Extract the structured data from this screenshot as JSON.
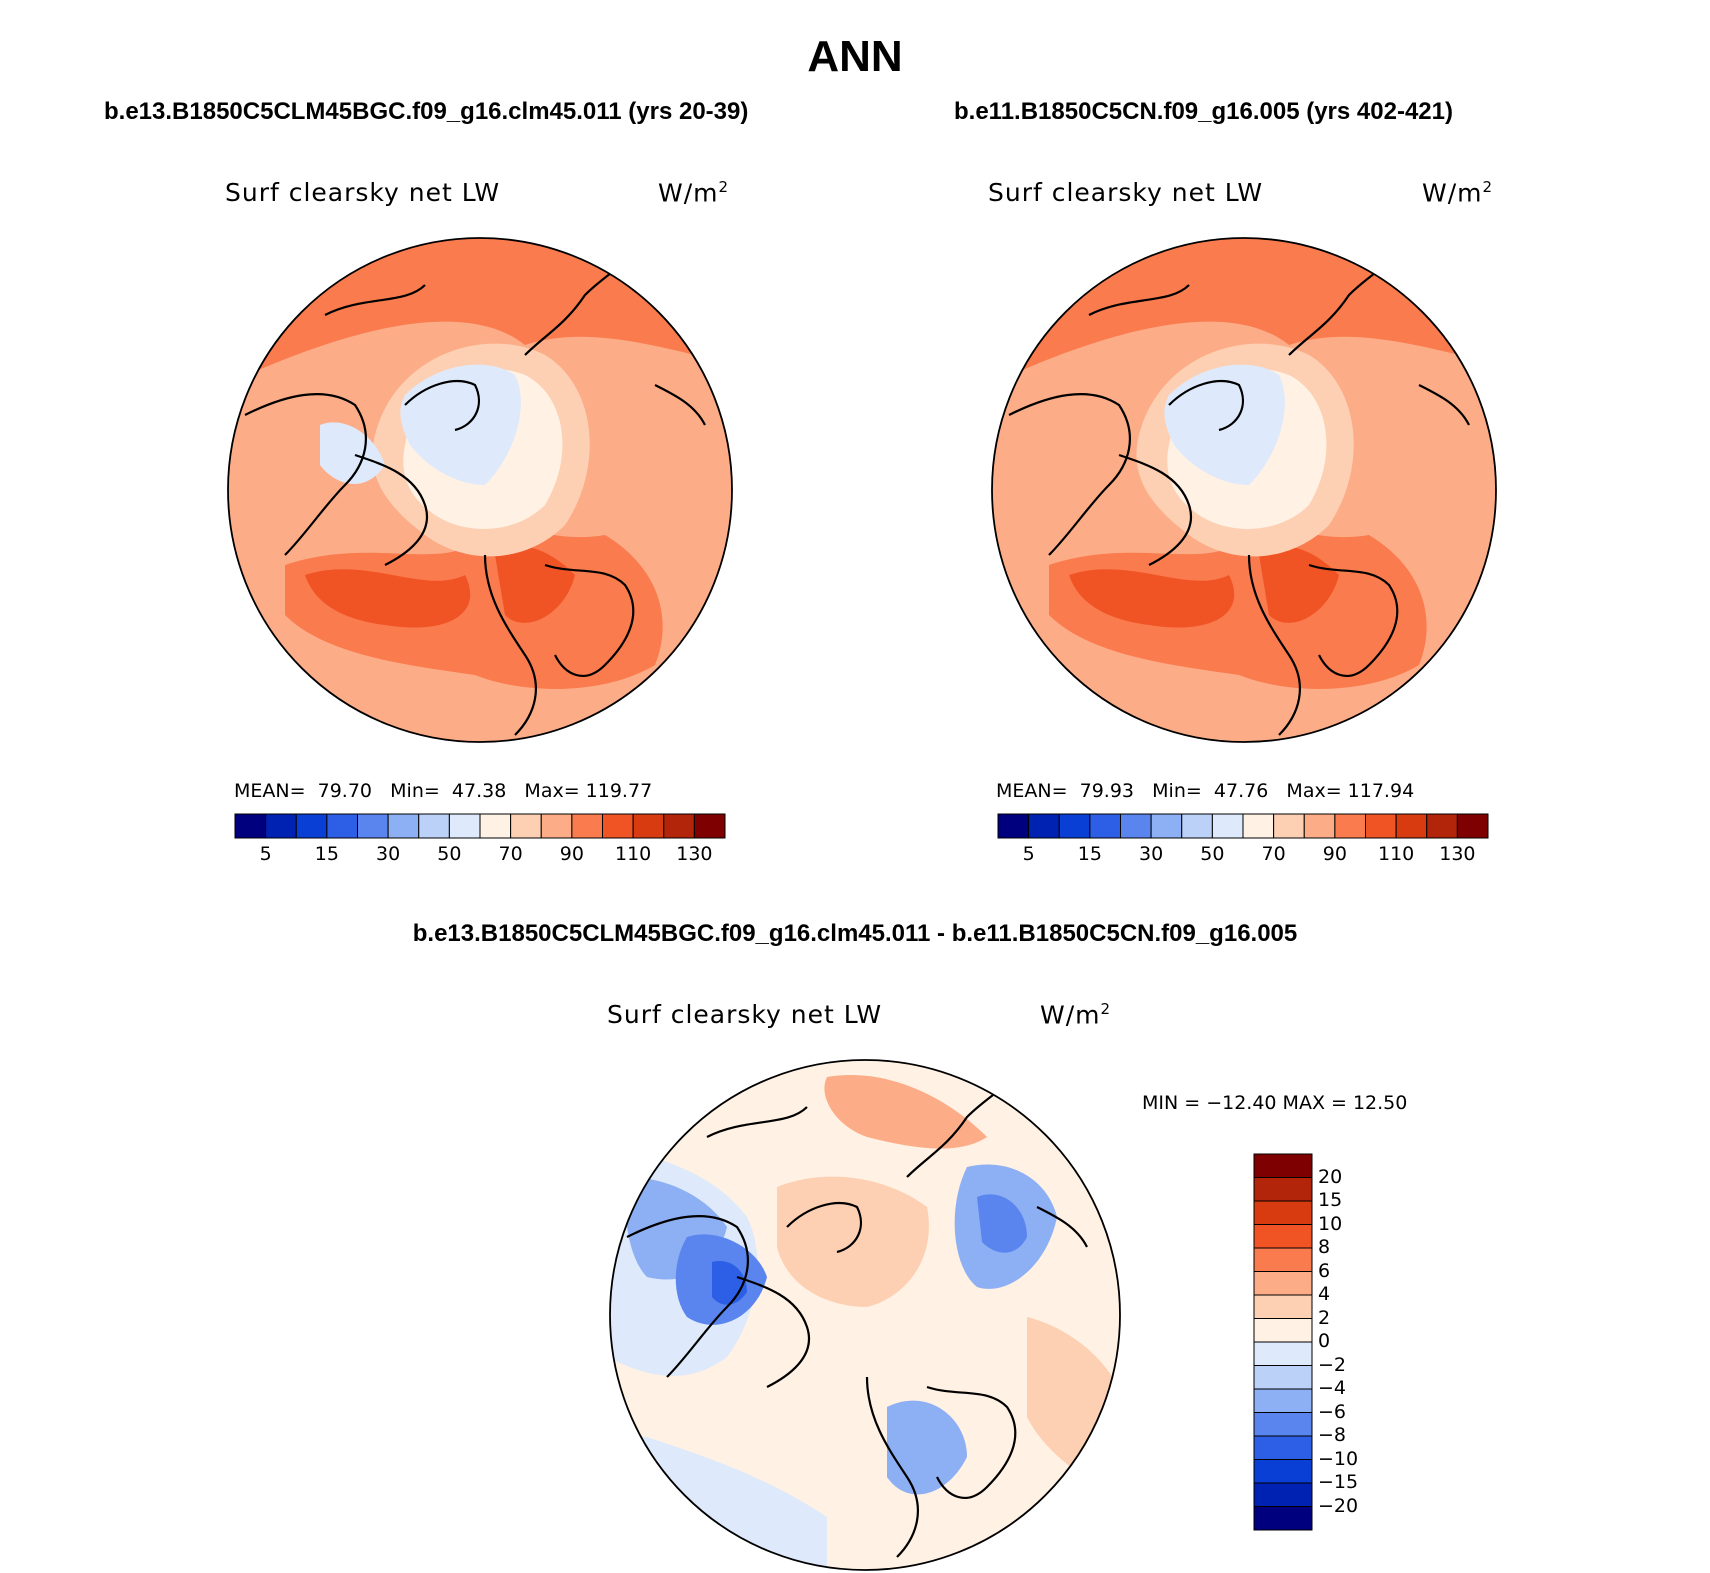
{
  "header": {
    "title": "ANN",
    "case1_title": "b.e13.B1850C5CLM45BGC.f09_g16.clm45.011 (yrs 20-39)",
    "case2_title": "b.e11.B1850C5CN.f09_g16.005 (yrs 402-421)",
    "diff_title": "b.e13.B1850C5CLM45BGC.f09_g16.clm45.011 - b.e11.B1850C5CN.f09_g16.005"
  },
  "panels": {
    "variable": "Surf clearsky net LW",
    "units": "W/m",
    "units_exp": "2",
    "case1": {
      "mean_label": "MEAN=",
      "mean": "79.70",
      "min_label": "Min=",
      "min": "47.38",
      "max_label": "Max=",
      "max": "119.77"
    },
    "case2": {
      "mean_label": "MEAN=",
      "mean": "79.93",
      "min_label": "Min=",
      "min": "47.76",
      "max_label": "Max=",
      "max": "117.94"
    },
    "diff": {
      "minmax": "MIN = −12.40 MAX =  12.50"
    }
  },
  "colors": {
    "abs_scale": [
      "#00007f",
      "#0022b3",
      "#0a3fd6",
      "#2d5fe6",
      "#5a85ee",
      "#8daff4",
      "#bcd1f8",
      "#deeafb",
      "#fff1e3",
      "#fdd0b4",
      "#fcad88",
      "#fa7b4e",
      "#f05425",
      "#d83b10",
      "#b3250a",
      "#7f0000"
    ],
    "diff_scale": [
      "#7f0000",
      "#b3250a",
      "#d83b10",
      "#f05425",
      "#fa7b4e",
      "#fcad88",
      "#fdd0b4",
      "#fff1e3",
      "#deeafb",
      "#bcd1f8",
      "#8daff4",
      "#5a85ee",
      "#2d5fe6",
      "#0a3fd6",
      "#0022b3",
      "#00007f"
    ]
  },
  "colorbar_abs": {
    "ticks": [
      "5",
      "15",
      "30",
      "50",
      "70",
      "90",
      "110",
      "130"
    ]
  },
  "colorbar_diff": {
    "ticks": [
      "20",
      "15",
      "10",
      "8",
      "6",
      "4",
      "2",
      "0",
      "−2",
      "−4",
      "−6",
      "−8",
      "−10",
      "−15",
      "−20"
    ]
  },
  "map_data": {
    "projection": "north polar stereographic",
    "field": "Surf clearsky net LW",
    "case1": {
      "mean": 79.7,
      "min": 47.38,
      "max": 119.77
    },
    "case2": {
      "mean": 79.93,
      "min": 47.76,
      "max": 117.94
    },
    "difference": {
      "min": -12.4,
      "max": 12.5
    }
  }
}
